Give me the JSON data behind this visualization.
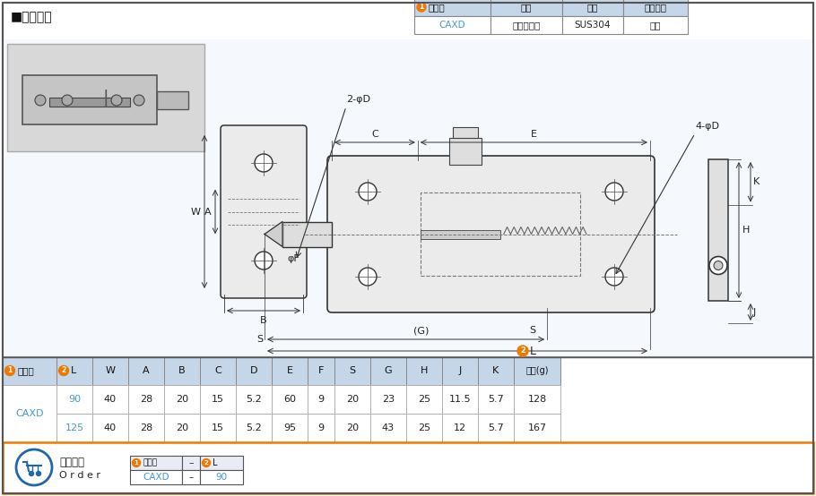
{
  "title": "■弹性插销",
  "orange": "#f07800",
  "blue_text": "#4499cc",
  "dark": "#222222",
  "gray": "#666666",
  "header_bg": "#c5d6e8",
  "white": "#ffffff",
  "top_table": {
    "headers": [
      "类型码",
      "方向",
      "材质",
      "表面处理"
    ],
    "row": [
      "CAXD",
      "左右通用型",
      "SUS304",
      "拉丝"
    ]
  },
  "main_table": {
    "headers": [
      "类型码",
      "L",
      "W",
      "A",
      "B",
      "C",
      "D",
      "E",
      "F",
      "S",
      "G",
      "H",
      "J",
      "K",
      "重量(g)"
    ],
    "rows": [
      [
        "CAXD",
        "90",
        "40",
        "28",
        "20",
        "15",
        "5.2",
        "60",
        "9",
        "20",
        "23",
        "25",
        "11.5",
        "5.7",
        "128"
      ],
      [
        "",
        "125",
        "40",
        "28",
        "20",
        "15",
        "5.2",
        "95",
        "9",
        "20",
        "43",
        "25",
        "12",
        "5.7",
        "167"
      ]
    ]
  },
  "order": {
    "label1": "订购范例",
    "label2": "O r d e r",
    "h1": "类型码",
    "h2": "L",
    "v1": "CAXD",
    "v2": "90"
  }
}
